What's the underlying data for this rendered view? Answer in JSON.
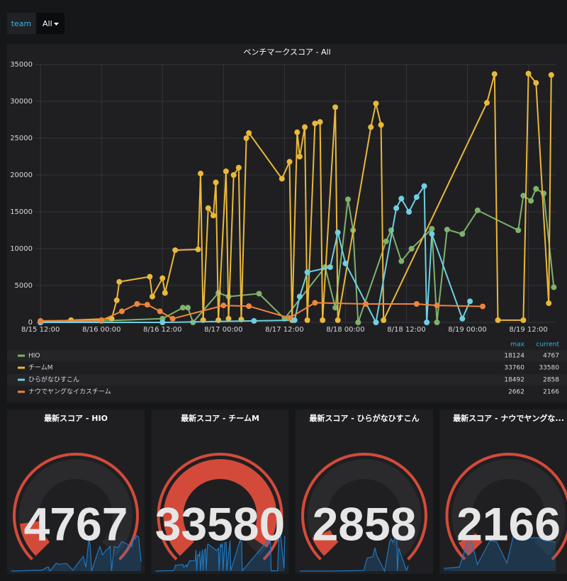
{
  "toolbar": {
    "variable_label": "team",
    "variable_value": "All"
  },
  "chart_data": {
    "type": "line",
    "title": "ベンチマークスコア - All",
    "xlim": [
      "8/15 11:00",
      "8/19 17:30"
    ],
    "xticks": [
      "8/15 12:00",
      "8/16 00:00",
      "8/16 12:00",
      "8/17 00:00",
      "8/17 12:00",
      "8/18 00:00",
      "8/18 12:00",
      "8/19 00:00",
      "8/19 12:00"
    ],
    "ylim": [
      0,
      35000
    ],
    "yticks": [
      0,
      5000,
      10000,
      15000,
      20000,
      25000,
      30000,
      35000
    ],
    "grid": true,
    "legend_columns": [
      "max",
      "current"
    ],
    "series": [
      {
        "name": "HIO",
        "color": "#7eb26d",
        "max": 18124,
        "current": 4767,
        "x": [
          "8/15 12:00",
          "8/16 00:00",
          "8/16 12:00",
          "8/16 16:00",
          "8/16 17:00",
          "8/16 18:00",
          "8/16 23:00",
          "8/17 01:00",
          "8/17 07:00",
          "8/17 12:00",
          "8/17 20:00",
          "8/17 22:00",
          "8/18 00:30",
          "8/18 01:30",
          "8/18 02:30",
          "8/18 08:00",
          "8/18 09:00",
          "8/18 11:00",
          "8/18 13:00",
          "8/18 17:00",
          "8/18 18:00",
          "8/18 20:00",
          "8/18 23:00",
          "8/19 02:00",
          "8/19 10:00",
          "8/19 11:00",
          "8/19 12:30",
          "8/19 13:30",
          "8/19 15:00",
          "8/19 17:00"
        ],
        "values": [
          0,
          200,
          500,
          2000,
          2000,
          0,
          4000,
          3500,
          3900,
          500,
          7500,
          2000,
          16700,
          12500,
          0,
          11000,
          12500,
          8300,
          10000,
          12700,
          0,
          12600,
          12000,
          15200,
          12500,
          17200,
          16500,
          18124,
          17500,
          4767
        ]
      },
      {
        "name": "チームM",
        "color": "#eab839",
        "max": 33760,
        "current": 33580,
        "x": [
          "8/15 12:00",
          "8/15 18:00",
          "8/16 02:00",
          "8/16 03:00",
          "8/16 03:30",
          "8/16 09:30",
          "8/16 10:00",
          "8/16 12:00",
          "8/16 12:30",
          "8/16 14:30",
          "8/16 19:00",
          "8/16 19:30",
          "8/16 20:00",
          "8/16 21:00",
          "8/16 22:00",
          "8/16 22:30",
          "8/16 23:00",
          "8/17 00:30",
          "8/17 01:00",
          "8/17 02:00",
          "8/17 03:00",
          "8/17 03:30",
          "8/17 04:30",
          "8/17 05:00",
          "8/17 11:30",
          "8/17 13:00",
          "8/17 13:30",
          "8/17 14:30",
          "8/17 15:00",
          "8/17 16:00",
          "8/17 16:30",
          "8/17 18:00",
          "8/17 19:00",
          "8/17 19:30",
          "8/17 22:00",
          "8/17 22:30",
          "8/18 05:00",
          "8/18 06:00",
          "8/18 07:00",
          "8/18 07:30",
          "8/19 03:50",
          "8/19 05:20",
          "8/19 06:00",
          "8/19 11:00",
          "8/19 12:00",
          "8/19 13:30",
          "8/19 16:00",
          "8/19 16:30"
        ],
        "values": [
          0,
          300,
          500,
          3000,
          5500,
          6200,
          3500,
          6000,
          4000,
          9800,
          9900,
          20200,
          300,
          15500,
          14500,
          19000,
          300,
          20500,
          500,
          20000,
          21000,
          400,
          25000,
          25700,
          19500,
          21800,
          300,
          25800,
          22500,
          26500,
          300,
          27000,
          27200,
          300,
          29200,
          300,
          26500,
          29700,
          26800,
          300,
          29800,
          33700,
          300,
          300,
          33760,
          32500,
          2600,
          33580
        ]
      },
      {
        "name": "ひらがなひすこん",
        "color": "#6ed0e0",
        "max": 18492,
        "current": 2858,
        "x": [
          "8/15 12:00",
          "8/16 12:00",
          "8/17 06:00",
          "8/17 14:00",
          "8/17 15:00",
          "8/17 16:30",
          "8/17 21:00",
          "8/17 22:30",
          "8/18 00:00",
          "8/18 06:00",
          "8/18 10:00",
          "8/18 11:00",
          "8/18 12:30",
          "8/18 14:00",
          "8/18 15:30",
          "8/18 16:00",
          "8/18 17:00",
          "8/18 23:00",
          "8/19 00:30"
        ],
        "values": [
          0,
          0,
          200,
          300,
          3500,
          6800,
          7500,
          12200,
          8000,
          0,
          15500,
          16800,
          15000,
          17000,
          18492,
          0,
          12000,
          500,
          2858
        ]
      },
      {
        "name": "ナウでヤングなイカスチーム",
        "color": "#ef843c",
        "max": 2662,
        "current": 2166,
        "x": [
          "8/15 12:00",
          "8/16 00:00",
          "8/16 04:00",
          "8/16 07:00",
          "8/16 09:00",
          "8/16 11:30",
          "8/16 14:00",
          "8/17 00:00",
          "8/17 05:00",
          "8/17 13:00",
          "8/17 18:00",
          "8/18 04:00",
          "8/18 14:00",
          "8/18 18:00",
          "8/19 03:00"
        ],
        "values": [
          200,
          300,
          1500,
          2500,
          2400,
          1500,
          500,
          2300,
          2200,
          600,
          2662,
          2500,
          2500,
          2300,
          2166
        ]
      }
    ]
  },
  "gauges": {
    "range": [
      0,
      35000
    ],
    "color": "#d44a3a",
    "sparkline_color": "#1f78c1",
    "panels": [
      {
        "title": "最新スコア - HIO"
      },
      {
        "title": "最新スコア - チームM"
      },
      {
        "title": "最新スコア - ひらがなひすこん"
      },
      {
        "title": "最新スコア - ナウでヤングな..."
      }
    ]
  }
}
